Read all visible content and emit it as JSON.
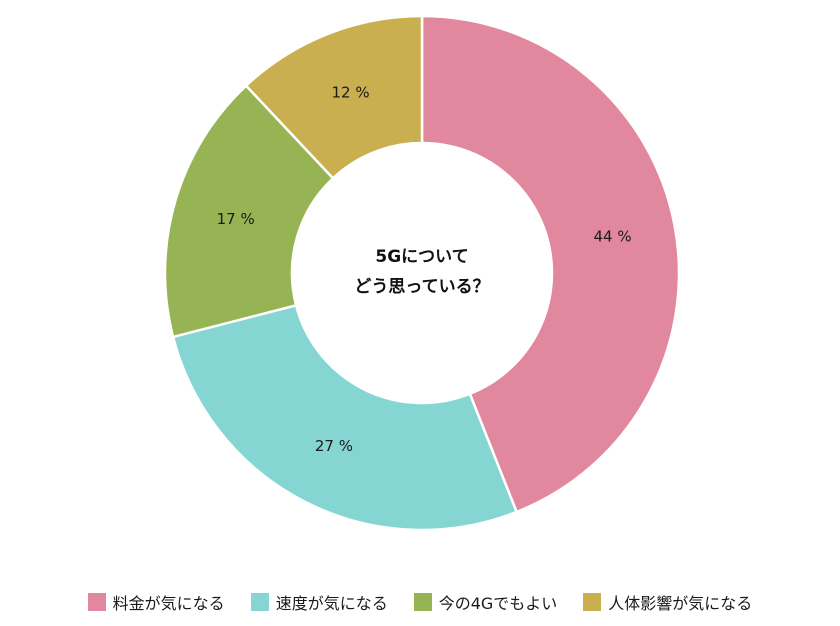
{
  "chart_data": {
    "type": "pie",
    "variant": "donut",
    "center_text": [
      "5Gについて",
      "どう思っている？"
    ],
    "slices": [
      {
        "label": "料金が気になる",
        "value": 44,
        "display": "44 %",
        "color": "#e2889e"
      },
      {
        "label": "速度が気になる",
        "value": 27,
        "display": "27 %",
        "color": "#85d6d3"
      },
      {
        "label": "今の4Gでもよい",
        "value": 17,
        "display": "17 %",
        "color": "#97b455"
      },
      {
        "label": "人体影響が気になる",
        "value": 12,
        "display": "12 %",
        "color": "#c9af4f"
      }
    ],
    "start_angle_deg": 0,
    "direction": "clockwise",
    "legend_position": "bottom"
  }
}
